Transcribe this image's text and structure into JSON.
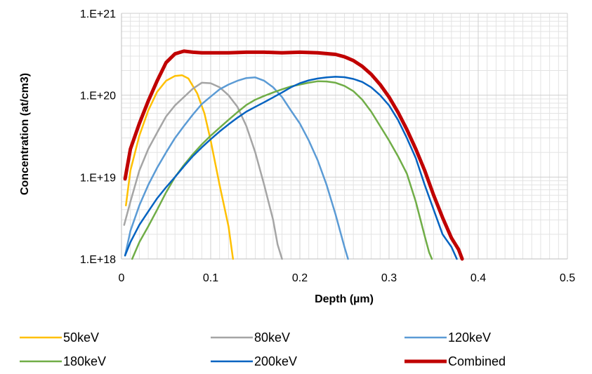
{
  "chart_data": {
    "type": "line",
    "title": "",
    "xlabel": "Depth (µm)",
    "ylabel": "Concentration (at/cm3)",
    "xlim": [
      0,
      0.5
    ],
    "ylim": [
      1e+18,
      1e+21
    ],
    "yscale": "log",
    "grid": "major and minor",
    "legend_position": "bottom",
    "x_ticks": [
      0,
      0.1,
      0.2,
      0.3,
      0.4,
      0.5
    ],
    "x_tick_labels": [
      "0",
      "0.1",
      "0.2",
      "0.3",
      "0.4",
      "0.5"
    ],
    "y_ticks": [
      1e+18,
      1e+19,
      1e+20,
      1e+21
    ],
    "y_tick_labels": [
      "1.E+18",
      "1.E+19",
      "1.E+20",
      "1.E+21"
    ],
    "series": [
      {
        "name": "50keV",
        "color": "#FFC000",
        "points": [
          [
            0.005,
            4.5e+18
          ],
          [
            0.01,
            1.2e+19
          ],
          [
            0.02,
            3.2e+19
          ],
          [
            0.03,
            6.5e+19
          ],
          [
            0.04,
            1.1e+20
          ],
          [
            0.05,
            1.5e+20
          ],
          [
            0.06,
            1.72e+20
          ],
          [
            0.068,
            1.75e+20
          ],
          [
            0.075,
            1.6e+20
          ],
          [
            0.085,
            1.05e+20
          ],
          [
            0.093,
            6e+19
          ],
          [
            0.1,
            2.8e+19
          ],
          [
            0.11,
            8e+18
          ],
          [
            0.12,
            2.5e+18
          ],
          [
            0.125,
            1e+18
          ]
        ]
      },
      {
        "name": "80keV",
        "color": "#A5A5A5",
        "points": [
          [
            0.003,
            2.6e+18
          ],
          [
            0.01,
            5e+18
          ],
          [
            0.02,
            1.2e+19
          ],
          [
            0.03,
            2.2e+19
          ],
          [
            0.04,
            3.5e+19
          ],
          [
            0.05,
            5.5e+19
          ],
          [
            0.06,
            7.5e+19
          ],
          [
            0.07,
            9.5e+19
          ],
          [
            0.08,
            1.2e+20
          ],
          [
            0.09,
            1.42e+20
          ],
          [
            0.1,
            1.4e+20
          ],
          [
            0.11,
            1.25e+20
          ],
          [
            0.12,
            1e+20
          ],
          [
            0.13,
            7.2e+19
          ],
          [
            0.14,
            4.2e+19
          ],
          [
            0.15,
            2e+19
          ],
          [
            0.16,
            8e+18
          ],
          [
            0.17,
            3e+18
          ],
          [
            0.175,
            1.5e+18
          ],
          [
            0.18,
            1e+18
          ]
        ]
      },
      {
        "name": "120keV",
        "color": "#5B9BD5",
        "points": [
          [
            0.004,
            1.1e+18
          ],
          [
            0.01,
            2.2e+18
          ],
          [
            0.02,
            4.5e+18
          ],
          [
            0.03,
            8e+18
          ],
          [
            0.04,
            1.3e+19
          ],
          [
            0.05,
            2e+19
          ],
          [
            0.06,
            3e+19
          ],
          [
            0.07,
            4.2e+19
          ],
          [
            0.08,
            5.8e+19
          ],
          [
            0.09,
            7.8e+19
          ],
          [
            0.1,
            9.6e+19
          ],
          [
            0.11,
            1.18e+20
          ],
          [
            0.12,
            1.35e+20
          ],
          [
            0.13,
            1.5e+20
          ],
          [
            0.14,
            1.62e+20
          ],
          [
            0.15,
            1.65e+20
          ],
          [
            0.16,
            1.5e+20
          ],
          [
            0.17,
            1.25e+20
          ],
          [
            0.18,
            9.5e+19
          ],
          [
            0.19,
            6.5e+19
          ],
          [
            0.2,
            4.5e+19
          ],
          [
            0.21,
            2.8e+19
          ],
          [
            0.22,
            1.6e+19
          ],
          [
            0.23,
            8e+18
          ],
          [
            0.24,
            3.5e+18
          ],
          [
            0.25,
            1.4e+18
          ],
          [
            0.254,
            1e+18
          ]
        ]
      },
      {
        "name": "180keV",
        "color": "#70AD47",
        "points": [
          [
            0.012,
            1e+18
          ],
          [
            0.02,
            1.6e+18
          ],
          [
            0.03,
            2.5e+18
          ],
          [
            0.04,
            4e+18
          ],
          [
            0.05,
            6.5e+18
          ],
          [
            0.06,
            1e+19
          ],
          [
            0.07,
            1.4e+19
          ],
          [
            0.08,
            1.9e+19
          ],
          [
            0.09,
            2.5e+19
          ],
          [
            0.1,
            3.2e+19
          ],
          [
            0.11,
            4e+19
          ],
          [
            0.12,
            5e+19
          ],
          [
            0.13,
            6.2e+19
          ],
          [
            0.14,
            7.6e+19
          ],
          [
            0.15,
            8.8e+19
          ],
          [
            0.16,
            9.8e+19
          ],
          [
            0.17,
            1.08e+20
          ],
          [
            0.18,
            1.18e+20
          ],
          [
            0.19,
            1.28e+20
          ],
          [
            0.2,
            1.35e+20
          ],
          [
            0.21,
            1.42e+20
          ],
          [
            0.22,
            1.48e+20
          ],
          [
            0.23,
            1.47e+20
          ],
          [
            0.24,
            1.42e+20
          ],
          [
            0.25,
            1.3e+20
          ],
          [
            0.26,
            1.12e+20
          ],
          [
            0.27,
            8.8e+19
          ],
          [
            0.28,
            6.3e+19
          ],
          [
            0.29,
            4.2e+19
          ],
          [
            0.3,
            2.8e+19
          ],
          [
            0.31,
            1.8e+19
          ],
          [
            0.32,
            1.1e+19
          ],
          [
            0.33,
            5e+18
          ],
          [
            0.34,
            1.9e+18
          ],
          [
            0.345,
            1.2e+18
          ],
          [
            0.348,
            1e+18
          ]
        ]
      },
      {
        "name": "200keV",
        "color": "#0563C1",
        "points": [
          [
            0.004,
            1.1e+18
          ],
          [
            0.01,
            1.6e+18
          ],
          [
            0.02,
            2.6e+18
          ],
          [
            0.03,
            3.8e+18
          ],
          [
            0.04,
            5.5e+18
          ],
          [
            0.05,
            7.5e+18
          ],
          [
            0.06,
            1e+19
          ],
          [
            0.07,
            1.35e+19
          ],
          [
            0.08,
            1.8e+19
          ],
          [
            0.09,
            2.3e+19
          ],
          [
            0.1,
            2.9e+19
          ],
          [
            0.11,
            3.6e+19
          ],
          [
            0.12,
            4.4e+19
          ],
          [
            0.13,
            5.3e+19
          ],
          [
            0.14,
            6.3e+19
          ],
          [
            0.15,
            7.2e+19
          ],
          [
            0.16,
            8.2e+19
          ],
          [
            0.17,
            9.4e+19
          ],
          [
            0.18,
            1.08e+20
          ],
          [
            0.19,
            1.25e+20
          ],
          [
            0.2,
            1.4e+20
          ],
          [
            0.21,
            1.52e+20
          ],
          [
            0.22,
            1.6e+20
          ],
          [
            0.23,
            1.65e+20
          ],
          [
            0.24,
            1.68e+20
          ],
          [
            0.25,
            1.66e+20
          ],
          [
            0.26,
            1.58e+20
          ],
          [
            0.27,
            1.45e+20
          ],
          [
            0.28,
            1.25e+20
          ],
          [
            0.29,
            1e+20
          ],
          [
            0.3,
            7.5e+19
          ],
          [
            0.31,
            5e+19
          ],
          [
            0.32,
            3e+19
          ],
          [
            0.33,
            1.7e+19
          ],
          [
            0.34,
            8e+18
          ],
          [
            0.35,
            4e+18
          ],
          [
            0.36,
            2e+18
          ],
          [
            0.37,
            1.4e+18
          ],
          [
            0.376,
            1e+18
          ]
        ]
      },
      {
        "name": "Combined",
        "color": "#C00000",
        "points": [
          [
            0.004,
            9.5e+18
          ],
          [
            0.01,
            2.2e+19
          ],
          [
            0.02,
            4.5e+19
          ],
          [
            0.03,
            8.5e+19
          ],
          [
            0.04,
            1.5e+20
          ],
          [
            0.05,
            2.5e+20
          ],
          [
            0.06,
            3.2e+20
          ],
          [
            0.07,
            3.45e+20
          ],
          [
            0.08,
            3.35e+20
          ],
          [
            0.09,
            3.3e+20
          ],
          [
            0.1,
            3.3e+20
          ],
          [
            0.12,
            3.3e+20
          ],
          [
            0.14,
            3.35e+20
          ],
          [
            0.16,
            3.35e+20
          ],
          [
            0.18,
            3.3e+20
          ],
          [
            0.2,
            3.35e+20
          ],
          [
            0.22,
            3.3e+20
          ],
          [
            0.24,
            3.15e+20
          ],
          [
            0.25,
            2.95e+20
          ],
          [
            0.26,
            2.65e+20
          ],
          [
            0.27,
            2.25e+20
          ],
          [
            0.28,
            1.8e+20
          ],
          [
            0.29,
            1.35e+20
          ],
          [
            0.3,
            9.5e+19
          ],
          [
            0.31,
            6.2e+19
          ],
          [
            0.32,
            3.8e+19
          ],
          [
            0.33,
            2.2e+19
          ],
          [
            0.34,
            1.2e+19
          ],
          [
            0.35,
            6e+18
          ],
          [
            0.36,
            3.2e+18
          ],
          [
            0.37,
            1.8e+18
          ],
          [
            0.378,
            1.3e+18
          ],
          [
            0.382,
            1e+18
          ]
        ]
      }
    ]
  }
}
